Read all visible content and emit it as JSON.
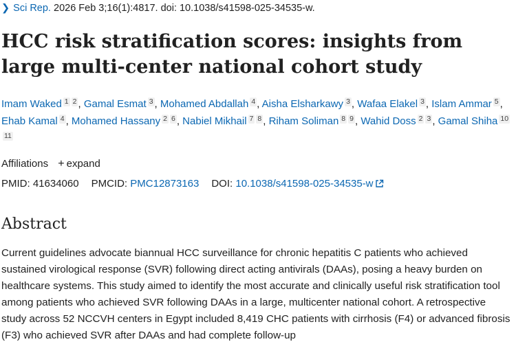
{
  "citation": {
    "journal": "Sci Rep.",
    "details": "2026 Feb 3;16(1):4817. doi: 10.1038/s41598-025-34535-w."
  },
  "title": "HCC risk stratification scores: insights from large multi-center national cohort study",
  "authors": [
    {
      "name": "Imam Waked",
      "affs": [
        "1",
        "2"
      ]
    },
    {
      "name": "Gamal Esmat",
      "affs": [
        "3"
      ]
    },
    {
      "name": "Mohamed Abdallah",
      "affs": [
        "4"
      ]
    },
    {
      "name": "Aisha Elsharkawy",
      "affs": [
        "3"
      ]
    },
    {
      "name": "Wafaa Elakel",
      "affs": [
        "3"
      ]
    },
    {
      "name": "Islam Ammar",
      "affs": [
        "5"
      ]
    },
    {
      "name": "Ehab Kamal",
      "affs": [
        "4"
      ]
    },
    {
      "name": "Mohamed Hassany",
      "affs": [
        "2",
        "6"
      ]
    },
    {
      "name": "Nabiel Mikhail",
      "affs": [
        "7",
        "8"
      ]
    },
    {
      "name": "Riham Soliman",
      "affs": [
        "8",
        "9"
      ]
    },
    {
      "name": "Wahid Doss",
      "affs": [
        "2",
        "3"
      ]
    },
    {
      "name": "Gamal Shiha",
      "affs": [
        "10",
        "11"
      ]
    }
  ],
  "affiliations": {
    "label": "Affiliations",
    "expand_label": "expand"
  },
  "ids": {
    "pmid_label": "PMID:",
    "pmid": "41634060",
    "pmcid_label": "PMCID:",
    "pmcid": "PMC12873163",
    "doi_label": "DOI:",
    "doi": "10.1038/s41598-025-34535-w"
  },
  "abstract": {
    "heading": "Abstract",
    "text": "Current guidelines advocate biannual HCC surveillance for chronic hepatitis C patients who achieved sustained virological response (SVR) following direct acting antivirals (DAAs), posing a heavy burden on healthcare systems. This study aimed to identify the most accurate and clinically useful risk stratification tool among patients who achieved SVR following DAAs in a large, multicenter national cohort. A retrospective study across 52 NCCVH centers in Egypt included 8,419 CHC patients with cirrhosis (F4) or advanced fibrosis (F3) who achieved SVR after DAAs and had complete follow-up"
  }
}
